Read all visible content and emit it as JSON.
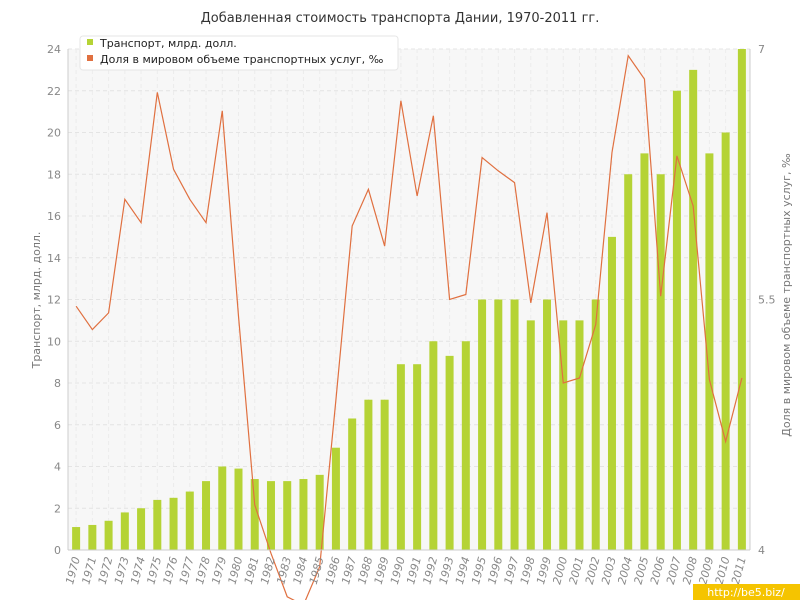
{
  "chart_data": {
    "type": "bar",
    "title": "Добавленная стоимость транспорта Дании, 1970-2011 гг.",
    "categories": [
      "1970",
      "1971",
      "1972",
      "1973",
      "1974",
      "1975",
      "1976",
      "1977",
      "1978",
      "1979",
      "1980",
      "1981",
      "1982",
      "1983",
      "1984",
      "1985",
      "1986",
      "1987",
      "1988",
      "1989",
      "1990",
      "1991",
      "1992",
      "1993",
      "1994",
      "1995",
      "1996",
      "1997",
      "1998",
      "1999",
      "2000",
      "2001",
      "2002",
      "2003",
      "2004",
      "2005",
      "2006",
      "2007",
      "2008",
      "2009",
      "2010",
      "2011"
    ],
    "series": [
      {
        "name": "Транспорт, млрд. долл.",
        "type": "bar",
        "axis": "left",
        "color": "#b5d335",
        "values": [
          1.1,
          1.2,
          1.4,
          1.8,
          2.0,
          2.4,
          2.5,
          2.8,
          3.3,
          4.0,
          3.9,
          3.4,
          3.3,
          3.3,
          3.4,
          3.6,
          4.9,
          6.3,
          7.2,
          7.2,
          8.9,
          8.9,
          10.0,
          9.3,
          10.0,
          12.0,
          12.0,
          12.0,
          11.0,
          12.0,
          11.0,
          11.0,
          12.0,
          15.0,
          18.0,
          19.0,
          18.0,
          22.0,
          23.0,
          19.0,
          20.0,
          24.0
        ]
      },
      {
        "name": "Доля в мировом объеме транспортных услуг, ‰",
        "type": "line",
        "axis": "right",
        "color": "#e07040",
        "values": [
          5.46,
          5.32,
          5.42,
          6.1,
          5.96,
          6.74,
          6.28,
          6.1,
          5.96,
          6.63,
          5.4,
          4.27,
          3.98,
          3.72,
          3.67,
          3.9,
          4.9,
          5.94,
          6.16,
          5.82,
          6.69,
          6.12,
          6.6,
          5.5,
          5.53,
          6.35,
          6.27,
          6.2,
          5.48,
          6.02,
          5.0,
          5.03,
          5.35,
          6.38,
          6.96,
          6.82,
          5.52,
          6.36,
          6.06,
          5.02,
          4.65,
          5.03
        ]
      }
    ],
    "ylabel": "Транспорт, млрд. долл.",
    "y2label": "Доля в мировом объеме транспортных услуг, ‰",
    "ylim": [
      0,
      24
    ],
    "yticks": [
      0,
      2,
      4,
      6,
      8,
      10,
      12,
      14,
      16,
      18,
      20,
      22,
      24
    ],
    "y2lim": [
      4,
      7
    ],
    "y2ticks": [
      "4",
      "5.5",
      "7"
    ],
    "grid": true,
    "legend": "top-left"
  },
  "watermark": "http://be5.biz/"
}
